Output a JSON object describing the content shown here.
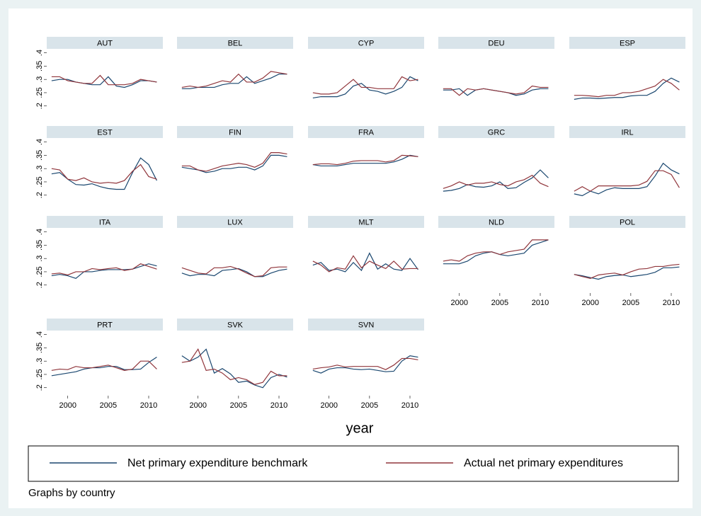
{
  "chart_data": {
    "type": "line",
    "x": [
      1998,
      1999,
      2000,
      2001,
      2002,
      2003,
      2004,
      2005,
      2006,
      2007,
      2008,
      2009,
      2010,
      2011
    ],
    "xlim": [
      1997.4,
      2011.75
    ],
    "xticks": [
      2000,
      2005,
      2010
    ],
    "ylim": [
      0.17,
      0.415
    ],
    "yticks": [
      {
        "value": 0.2,
        "label": ".2"
      },
      {
        "value": 0.25,
        "label": ".25"
      },
      {
        "value": 0.3,
        "label": ".3"
      },
      {
        "value": 0.35,
        "label": ".35"
      },
      {
        "value": 0.4,
        "label": ".4"
      }
    ],
    "xlabel": "year",
    "note": "Graphs by country",
    "legend": [
      {
        "name": "Net primary expenditure benchmark",
        "color": "#1a476f"
      },
      {
        "name": "Actual net primary expenditures",
        "color": "#90353b"
      }
    ],
    "panels": [
      {
        "title": "AUT",
        "series": [
          {
            "values": [
              0.295,
              0.3,
              0.3,
              0.29,
              0.285,
              0.28,
              0.28,
              0.31,
              0.275,
              0.27,
              0.28,
              0.295,
              0.295,
              0.29
            ]
          },
          {
            "values": [
              0.31,
              0.31,
              0.295,
              0.29,
              0.285,
              0.285,
              0.315,
              0.28,
              0.28,
              0.28,
              0.285,
              0.3,
              0.295,
              0.29
            ]
          }
        ]
      },
      {
        "title": "BEL",
        "series": [
          {
            "values": [
              0.265,
              0.265,
              0.27,
              0.27,
              0.27,
              0.28,
              0.285,
              0.285,
              0.31,
              0.285,
              0.295,
              0.305,
              0.32,
              0.32
            ]
          },
          {
            "values": [
              0.27,
              0.275,
              0.27,
              0.275,
              0.285,
              0.295,
              0.29,
              0.32,
              0.29,
              0.29,
              0.305,
              0.33,
              0.325,
              0.32
            ]
          }
        ]
      },
      {
        "title": "CYP",
        "series": [
          {
            "values": [
              0.23,
              0.235,
              0.235,
              0.235,
              0.245,
              0.275,
              0.285,
              0.26,
              0.255,
              0.245,
              0.255,
              0.27,
              0.31,
              0.295
            ]
          },
          {
            "values": [
              0.25,
              0.245,
              0.245,
              0.25,
              0.275,
              0.3,
              0.27,
              0.27,
              0.265,
              0.265,
              0.265,
              0.31,
              0.295,
              0.3
            ]
          }
        ]
      },
      {
        "title": "DEU",
        "series": [
          {
            "values": [
              0.26,
              0.26,
              0.265,
              0.24,
              0.26,
              0.265,
              0.26,
              0.255,
              0.25,
              0.24,
              0.245,
              0.26,
              0.265,
              0.265
            ]
          },
          {
            "values": [
              0.265,
              0.265,
              0.24,
              0.265,
              0.26,
              0.265,
              0.26,
              0.255,
              0.25,
              0.245,
              0.25,
              0.275,
              0.27,
              0.27
            ]
          }
        ]
      },
      {
        "title": "ESP",
        "series": [
          {
            "values": [
              0.225,
              0.23,
              0.23,
              0.228,
              0.23,
              0.232,
              0.232,
              0.238,
              0.24,
              0.24,
              0.255,
              0.285,
              0.305,
              0.29
            ]
          },
          {
            "values": [
              0.24,
              0.24,
              0.238,
              0.235,
              0.24,
              0.24,
              0.25,
              0.25,
              0.255,
              0.265,
              0.275,
              0.3,
              0.285,
              0.26
            ]
          }
        ]
      },
      {
        "title": "EST",
        "series": [
          {
            "values": [
              0.28,
              0.285,
              0.26,
              0.24,
              0.238,
              0.243,
              0.232,
              0.225,
              0.222,
              0.222,
              0.285,
              0.34,
              0.315,
              0.255
            ]
          },
          {
            "values": [
              0.3,
              0.295,
              0.26,
              0.255,
              0.265,
              0.25,
              0.245,
              0.248,
              0.245,
              0.255,
              0.29,
              0.315,
              0.27,
              0.26
            ]
          }
        ]
      },
      {
        "title": "FIN",
        "series": [
          {
            "values": [
              0.305,
              0.3,
              0.295,
              0.285,
              0.29,
              0.3,
              0.3,
              0.305,
              0.305,
              0.295,
              0.31,
              0.35,
              0.35,
              0.345
            ]
          },
          {
            "values": [
              0.31,
              0.31,
              0.295,
              0.29,
              0.3,
              0.31,
              0.315,
              0.32,
              0.315,
              0.305,
              0.32,
              0.36,
              0.36,
              0.355
            ]
          }
        ]
      },
      {
        "title": "FRA",
        "series": [
          {
            "values": [
              0.315,
              0.31,
              0.31,
              0.31,
              0.315,
              0.32,
              0.32,
              0.32,
              0.32,
              0.32,
              0.325,
              0.335,
              0.35,
              0.345
            ]
          },
          {
            "values": [
              0.315,
              0.318,
              0.318,
              0.315,
              0.32,
              0.328,
              0.33,
              0.33,
              0.33,
              0.325,
              0.33,
              0.35,
              0.348,
              0.345
            ]
          }
        ]
      },
      {
        "title": "GRC",
        "series": [
          {
            "values": [
              0.215,
              0.218,
              0.225,
              0.24,
              0.232,
              0.23,
              0.235,
              0.25,
              0.225,
              0.228,
              0.248,
              0.265,
              0.295,
              0.265
            ]
          },
          {
            "values": [
              0.225,
              0.235,
              0.25,
              0.238,
              0.245,
              0.245,
              0.25,
              0.24,
              0.235,
              0.25,
              0.258,
              0.275,
              0.245,
              0.232
            ]
          }
        ]
      },
      {
        "title": "IRL",
        "series": [
          {
            "values": [
              0.205,
              0.198,
              0.215,
              0.205,
              0.22,
              0.228,
              0.225,
              0.225,
              0.225,
              0.232,
              0.272,
              0.32,
              0.295,
              0.28
            ]
          },
          {
            "values": [
              0.215,
              0.232,
              0.215,
              0.235,
              0.235,
              0.235,
              0.235,
              0.235,
              0.238,
              0.252,
              0.292,
              0.292,
              0.278,
              0.228
            ]
          }
        ]
      },
      {
        "title": "ITA",
        "series": [
          {
            "values": [
              0.235,
              0.24,
              0.235,
              0.225,
              0.25,
              0.25,
              0.255,
              0.258,
              0.258,
              0.258,
              0.26,
              0.27,
              0.28,
              0.272
            ]
          },
          {
            "values": [
              0.242,
              0.245,
              0.238,
              0.25,
              0.25,
              0.262,
              0.258,
              0.262,
              0.265,
              0.255,
              0.26,
              0.28,
              0.27,
              0.26
            ]
          }
        ]
      },
      {
        "title": "LUX",
        "series": [
          {
            "values": [
              0.245,
              0.235,
              0.24,
              0.24,
              0.235,
              0.255,
              0.258,
              0.262,
              0.25,
              0.232,
              0.232,
              0.245,
              0.255,
              0.26
            ]
          },
          {
            "values": [
              0.265,
              0.255,
              0.245,
              0.242,
              0.265,
              0.265,
              0.27,
              0.26,
              0.245,
              0.232,
              0.235,
              0.265,
              0.268,
              0.268
            ]
          }
        ]
      },
      {
        "title": "MLT",
        "series": [
          {
            "values": [
              0.275,
              0.285,
              0.255,
              0.26,
              0.25,
              0.285,
              0.255,
              0.32,
              0.26,
              0.28,
              0.26,
              0.255,
              0.3,
              0.258
            ]
          },
          {
            "values": [
              0.29,
              0.275,
              0.25,
              0.265,
              0.26,
              0.31,
              0.265,
              0.29,
              0.275,
              0.262,
              0.29,
              0.26,
              0.262,
              0.262
            ]
          }
        ]
      },
      {
        "title": "NLD",
        "series": [
          {
            "values": [
              0.28,
              0.28,
              0.28,
              0.29,
              0.31,
              0.32,
              0.325,
              0.315,
              0.31,
              0.315,
              0.32,
              0.35,
              0.36,
              0.37
            ]
          },
          {
            "values": [
              0.29,
              0.295,
              0.29,
              0.31,
              0.32,
              0.325,
              0.325,
              0.315,
              0.325,
              0.33,
              0.335,
              0.37,
              0.37,
              0.37
            ]
          }
        ]
      },
      {
        "title": "POL",
        "series": [
          {
            "values": [
              0.24,
              0.235,
              0.228,
              0.222,
              0.232,
              0.236,
              0.238,
              0.232,
              0.236,
              0.24,
              0.248,
              0.265,
              0.265,
              0.268
            ]
          },
          {
            "values": [
              0.24,
              0.232,
              0.225,
              0.238,
              0.242,
              0.245,
              0.238,
              0.25,
              0.26,
              0.262,
              0.27,
              0.27,
              0.275,
              0.278
            ]
          }
        ]
      },
      {
        "title": "PRT",
        "series": [
          {
            "values": [
              0.245,
              0.25,
              0.255,
              0.26,
              0.27,
              0.275,
              0.275,
              0.28,
              0.28,
              0.268,
              0.268,
              0.27,
              0.295,
              0.315
            ]
          },
          {
            "values": [
              0.265,
              0.27,
              0.268,
              0.28,
              0.275,
              0.275,
              0.28,
              0.285,
              0.275,
              0.265,
              0.27,
              0.3,
              0.3,
              0.27
            ]
          }
        ]
      },
      {
        "title": "SVK",
        "series": [
          {
            "values": [
              0.32,
              0.3,
              0.315,
              0.345,
              0.255,
              0.272,
              0.252,
              0.22,
              0.225,
              0.21,
              0.2,
              0.238,
              0.25,
              0.24
            ]
          },
          {
            "values": [
              0.295,
              0.3,
              0.345,
              0.265,
              0.27,
              0.255,
              0.23,
              0.238,
              0.23,
              0.212,
              0.22,
              0.262,
              0.245,
              0.245
            ]
          }
        ]
      },
      {
        "title": "SVN",
        "series": [
          {
            "values": [
              0.265,
              0.255,
              0.27,
              0.275,
              0.275,
              0.27,
              0.268,
              0.27,
              0.265,
              0.26,
              0.262,
              0.3,
              0.32,
              0.315
            ]
          },
          {
            "values": [
              0.27,
              0.275,
              0.278,
              0.285,
              0.278,
              0.28,
              0.28,
              0.28,
              0.28,
              0.268,
              0.285,
              0.31,
              0.31,
              0.305
            ]
          }
        ]
      }
    ]
  }
}
